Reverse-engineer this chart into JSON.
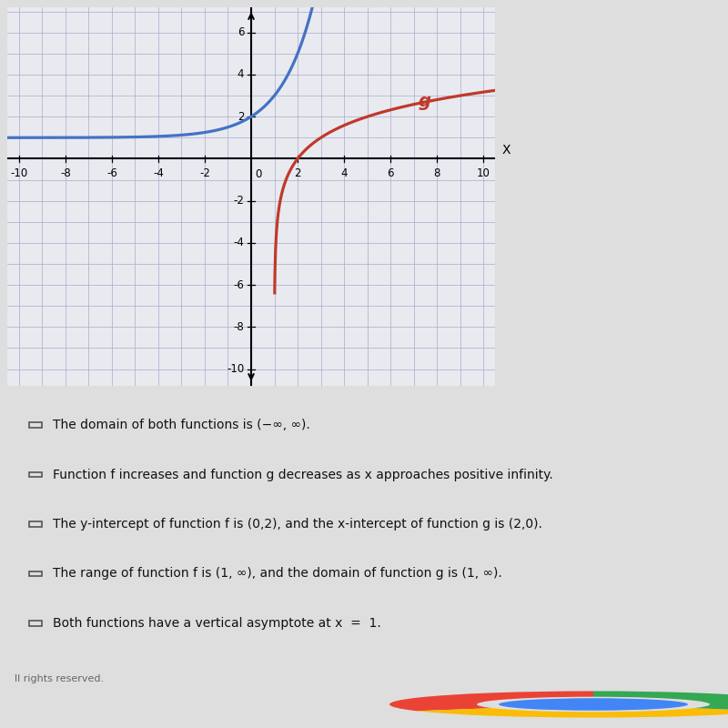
{
  "xlim": [
    -10.5,
    10.5
  ],
  "ylim": [
    -10.8,
    7.2
  ],
  "xticks": [
    -10,
    -8,
    -6,
    -4,
    -2,
    2,
    4,
    6,
    8,
    10
  ],
  "yticks": [
    -10,
    -8,
    -6,
    -4,
    -2,
    2,
    4,
    6
  ],
  "f_color": "#4472C4",
  "g_color": "#C0392B",
  "g_label": "g",
  "bg_color": "#E8EAF0",
  "grid_color": "#AAAACC",
  "graph_bg": "#E8EAF0",
  "panel_bg": "#DEDEDE",
  "text_bg": "#E8E8E0",
  "text_color": "#111111",
  "footer_text": "ll rights reserved.",
  "chrome_bar_color": "#7070B0",
  "checkbox_options": [
    "The domain of both functions is (−∞, ∞).",
    "Function f increases and function g decreases as x approaches positive infinity.",
    "The y-intercept of function f is (0,2), and the x-intercept of function g is (2,0).",
    "The range of function f is (1, ∞), and the domain of function g is (1, ∞).",
    "Both functions have a vertical asymptote at x  =  1."
  ]
}
